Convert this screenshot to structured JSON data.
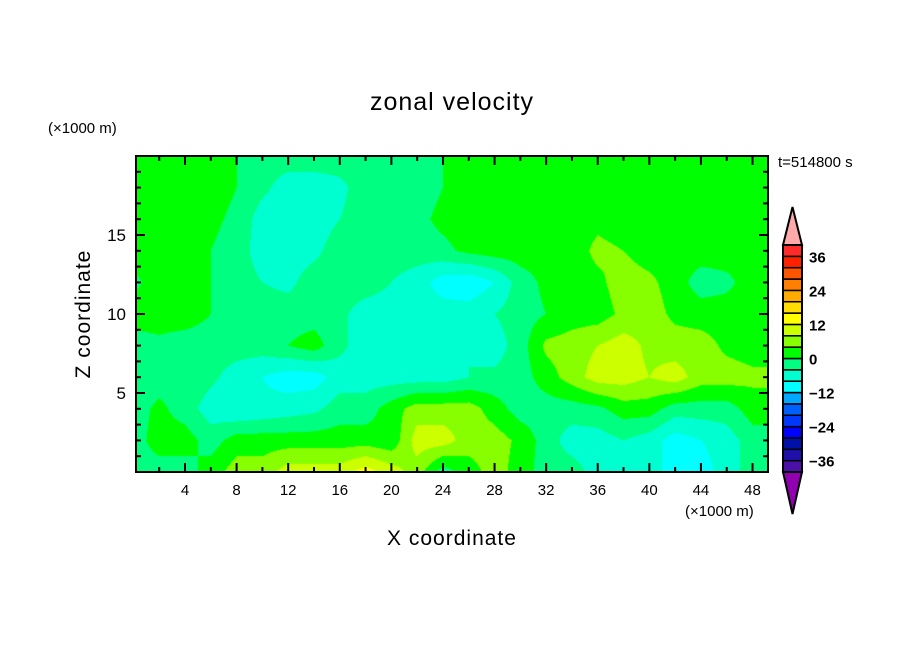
{
  "chart_data": {
    "type": "heatmap",
    "subtype": "filled-contour",
    "title": "zonal velocity",
    "xlabel": "X coordinate",
    "ylabel": "Z coordinate",
    "x_unit": "(×1000 m)",
    "y_unit": "(×1000 m)",
    "annotation": "t=514800 s",
    "xlim": [
      0.2,
      49.2
    ],
    "ylim": [
      0,
      20
    ],
    "x_ticks": [
      4,
      8,
      12,
      16,
      20,
      24,
      28,
      32,
      36,
      40,
      44,
      48
    ],
    "x_tick_labels": [
      "4",
      "8",
      "12",
      "16",
      "20",
      "24",
      "28",
      "32",
      "36",
      "40",
      "44",
      "48"
    ],
    "y_ticks": [
      5,
      10,
      15
    ],
    "y_tick_labels": [
      "5",
      "10",
      "15"
    ],
    "grid_x": [
      0,
      2,
      4,
      6,
      8,
      10,
      12,
      14,
      16,
      18,
      20,
      22,
      24,
      26,
      28,
      30,
      32,
      34,
      36,
      38,
      40,
      42,
      44,
      46,
      48
    ],
    "grid_z": [
      0,
      2,
      4,
      6,
      8,
      10,
      12,
      14,
      16,
      18,
      20
    ],
    "values": [
      [
        -2,
        -2,
        -2,
        2,
        6,
        6,
        10,
        10,
        10,
        14,
        10,
        6,
        -2,
        2,
        6,
        2,
        -2,
        -2,
        -6,
        -6,
        -6,
        -10,
        -10,
        -6,
        -2
      ],
      [
        -2,
        2,
        2,
        -2,
        2,
        2,
        2,
        2,
        2,
        2,
        1,
        10,
        10,
        6,
        6,
        3,
        -2,
        -6,
        -6,
        -4,
        -6,
        -10,
        -8,
        -6,
        -2
      ],
      [
        -2,
        1,
        -2,
        -6,
        -8,
        -7,
        -6,
        -5,
        -2,
        -2,
        2,
        6,
        6,
        6,
        2,
        -2,
        -2,
        -2,
        -1,
        2,
        2,
        -2,
        -2,
        -2,
        2
      ],
      [
        -2,
        -2,
        -1,
        -3,
        -6,
        -8,
        -10,
        -10,
        -6,
        -6,
        -6,
        -6,
        -6,
        -4,
        -3,
        -2,
        2,
        6,
        10,
        10,
        8,
        10,
        6,
        6,
        5
      ],
      [
        -2,
        -1,
        -2,
        -2,
        -2,
        -2,
        0,
        2,
        -3,
        -6,
        -7,
        -6,
        -6,
        -4,
        -6,
        -2,
        5,
        6,
        8,
        10,
        7,
        6,
        6,
        3,
        2
      ],
      [
        2,
        2,
        2,
        0,
        -2,
        -2,
        -2,
        -2,
        -3,
        -6,
        -6,
        -6,
        -6,
        -6,
        -4,
        -2,
        0,
        2,
        2,
        5,
        6,
        3,
        2,
        2,
        2
      ],
      [
        -1,
        2,
        2,
        0,
        -2,
        -4,
        -5,
        -2,
        -2,
        -2,
        -4,
        -6,
        -10,
        -11,
        -8,
        -2,
        1,
        2,
        3,
        6,
        5,
        2,
        -2,
        -1,
        2
      ],
      [
        2,
        2,
        2,
        0,
        -2,
        -6,
        -6,
        -5,
        -2,
        -2,
        -2,
        -2,
        -1,
        1,
        2,
        2,
        2,
        2,
        5,
        4,
        2,
        2,
        2,
        2,
        2
      ],
      [
        2,
        2,
        2,
        1,
        -1,
        -6,
        -6,
        -6,
        -4,
        -2,
        -2,
        -1,
        1,
        2,
        2,
        2,
        2,
        2,
        3,
        2,
        2,
        2,
        2,
        2,
        2
      ],
      [
        2,
        2,
        2,
        2,
        0,
        -3,
        -6,
        -6,
        -5,
        -2,
        -2,
        -2,
        0,
        2,
        2,
        2,
        2,
        2,
        2,
        2,
        2,
        2,
        2,
        2,
        2
      ],
      [
        2,
        2,
        2,
        2,
        0,
        -2,
        -2,
        -2,
        -2,
        -2,
        -2,
        -2,
        0,
        2,
        2,
        2,
        2,
        2,
        2,
        2,
        2,
        2,
        2,
        2,
        2
      ]
    ],
    "levels": [
      -40,
      -36,
      -32,
      -28,
      -24,
      -20,
      -16,
      -12,
      -8,
      -4,
      0,
      4,
      8,
      12,
      16,
      20,
      24,
      28,
      32,
      36,
      40
    ],
    "colors": [
      "#4a10a8",
      "#1e10a8",
      "#0010a8",
      "#0000ff",
      "#0038ff",
      "#0060ff",
      "#00a8ff",
      "#00ffff",
      "#00ffd0",
      "#00ff80",
      "#00ff00",
      "#88ff00",
      "#ccff00",
      "#ffff00",
      "#ffdd00",
      "#ffaa00",
      "#ff8000",
      "#ff5500",
      "#ff2000",
      "#ff2a2a"
    ],
    "under_color": "#9000b0",
    "over_color": "#ffaaaa",
    "colorbar_labels": [
      "36",
      "24",
      "12",
      "0",
      "−12",
      "−24",
      "−36"
    ],
    "colorbar_label_values": [
      36,
      24,
      12,
      0,
      -12,
      -24,
      -36
    ]
  }
}
